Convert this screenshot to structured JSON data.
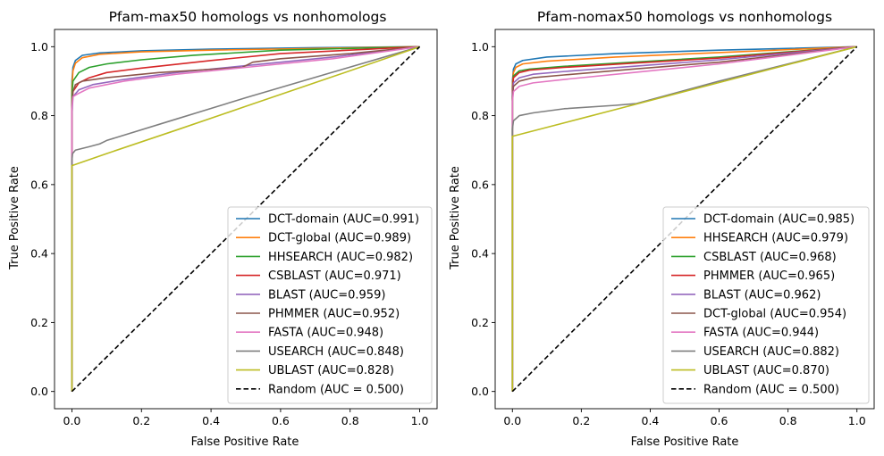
{
  "chart_data": [
    {
      "type": "line",
      "title": "Pfam-max50 homologs vs nonhomologs",
      "xlabel": "False Positive Rate",
      "ylabel": "True Positive Rate",
      "xlim": [
        -0.05,
        1.05
      ],
      "ylim": [
        -0.05,
        1.05
      ],
      "xticks": [
        "0.0",
        "0.2",
        "0.4",
        "0.6",
        "0.8",
        "1.0"
      ],
      "yticks": [
        "0.0",
        "0.2",
        "0.4",
        "0.6",
        "0.8",
        "1.0"
      ],
      "grid": false,
      "legend_position": "lower-right",
      "series": [
        {
          "name": "DCT-domain (AUC=0.991)",
          "color": "#1f77b4",
          "dash": "solid",
          "points": [
            [
              0,
              0
            ],
            [
              0,
              0.9
            ],
            [
              0.003,
              0.94
            ],
            [
              0.01,
              0.96
            ],
            [
              0.03,
              0.975
            ],
            [
              0.08,
              0.982
            ],
            [
              0.2,
              0.988
            ],
            [
              0.4,
              0.993
            ],
            [
              0.7,
              0.997
            ],
            [
              1,
              1
            ]
          ]
        },
        {
          "name": "DCT-global (AUC=0.989)",
          "color": "#ff7f0e",
          "dash": "solid",
          "points": [
            [
              0,
              0
            ],
            [
              0,
              0.88
            ],
            [
              0.003,
              0.93
            ],
            [
              0.01,
              0.952
            ],
            [
              0.03,
              0.968
            ],
            [
              0.08,
              0.978
            ],
            [
              0.2,
              0.985
            ],
            [
              0.4,
              0.99
            ],
            [
              0.7,
              0.995
            ],
            [
              1,
              1
            ]
          ]
        },
        {
          "name": "HHSEARCH (AUC=0.982)",
          "color": "#2ca02c",
          "dash": "solid",
          "points": [
            [
              0,
              0
            ],
            [
              0,
              0.86
            ],
            [
              0.003,
              0.9
            ],
            [
              0.02,
              0.925
            ],
            [
              0.05,
              0.94
            ],
            [
              0.1,
              0.95
            ],
            [
              0.2,
              0.962
            ],
            [
              0.35,
              0.975
            ],
            [
              0.6,
              0.99
            ],
            [
              1,
              1
            ]
          ]
        },
        {
          "name": "CSBLAST (AUC=0.971)",
          "color": "#d62728",
          "dash": "solid",
          "points": [
            [
              0,
              0
            ],
            [
              0,
              0.82
            ],
            [
              0.003,
              0.87
            ],
            [
              0.02,
              0.895
            ],
            [
              0.05,
              0.91
            ],
            [
              0.1,
              0.925
            ],
            [
              0.2,
              0.938
            ],
            [
              0.4,
              0.96
            ],
            [
              0.6,
              0.98
            ],
            [
              1,
              1
            ]
          ]
        },
        {
          "name": "BLAST (AUC=0.959)",
          "color": "#9467bd",
          "dash": "solid",
          "points": [
            [
              0,
              0
            ],
            [
              0,
              0.8
            ],
            [
              0.003,
              0.855
            ],
            [
              0.02,
              0.875
            ],
            [
              0.06,
              0.89
            ],
            [
              0.15,
              0.905
            ],
            [
              0.3,
              0.925
            ],
            [
              0.5,
              0.945
            ],
            [
              0.75,
              0.97
            ],
            [
              1,
              1
            ]
          ]
        },
        {
          "name": "PHMMER (AUC=0.952)",
          "color": "#8c564b",
          "dash": "solid",
          "points": [
            [
              0,
              0
            ],
            [
              0,
              0.84
            ],
            [
              0.003,
              0.87
            ],
            [
              0.01,
              0.89
            ],
            [
              0.03,
              0.9
            ],
            [
              0.1,
              0.91
            ],
            [
              0.25,
              0.925
            ],
            [
              0.49,
              0.94
            ],
            [
              0.52,
              0.955
            ],
            [
              0.6,
              0.965
            ],
            [
              0.8,
              0.98
            ],
            [
              1,
              1
            ]
          ]
        },
        {
          "name": "FASTA (AUC=0.948)",
          "color": "#e377c2",
          "dash": "solid",
          "points": [
            [
              0,
              0
            ],
            [
              0,
              0.82
            ],
            [
              0.003,
              0.855
            ],
            [
              0.02,
              0.865
            ],
            [
              0.05,
              0.88
            ],
            [
              0.15,
              0.9
            ],
            [
              0.3,
              0.92
            ],
            [
              0.5,
              0.94
            ],
            [
              0.75,
              0.965
            ],
            [
              1,
              1
            ]
          ]
        },
        {
          "name": "USEARCH (AUC=0.848)",
          "color": "#7f7f7f",
          "dash": "solid",
          "points": [
            [
              0,
              0
            ],
            [
              0,
              0.67
            ],
            [
              0.002,
              0.69
            ],
            [
              0.01,
              0.7
            ],
            [
              0.05,
              0.71
            ],
            [
              0.08,
              0.718
            ],
            [
              0.1,
              0.728
            ],
            [
              0.3,
              0.79
            ],
            [
              0.5,
              0.852
            ],
            [
              0.75,
              0.926
            ],
            [
              1,
              1
            ]
          ]
        },
        {
          "name": "UBLAST (AUC=0.828)",
          "color": "#bcbd22",
          "dash": "solid",
          "points": [
            [
              0,
              0
            ],
            [
              0,
              0.655
            ],
            [
              0.1,
              0.69
            ],
            [
              0.3,
              0.758
            ],
            [
              0.5,
              0.827
            ],
            [
              0.75,
              0.913
            ],
            [
              1,
              1
            ]
          ]
        },
        {
          "name": "Random (AUC = 0.500)",
          "color": "#000000",
          "dash": "dashed",
          "points": [
            [
              0,
              0
            ],
            [
              1,
              1
            ]
          ]
        }
      ]
    },
    {
      "type": "line",
      "title": "Pfam-nomax50 homologs vs nonhomologs",
      "xlabel": "False Positive Rate",
      "ylabel": "True Positive Rate",
      "xlim": [
        -0.05,
        1.05
      ],
      "ylim": [
        -0.05,
        1.05
      ],
      "xticks": [
        "0.0",
        "0.2",
        "0.4",
        "0.6",
        "0.8",
        "1.0"
      ],
      "yticks": [
        "0.0",
        "0.2",
        "0.4",
        "0.6",
        "0.8",
        "1.0"
      ],
      "grid": false,
      "legend_position": "lower-right",
      "series": [
        {
          "name": "DCT-domain (AUC=0.985)",
          "color": "#1f77b4",
          "dash": "solid",
          "points": [
            [
              0,
              0
            ],
            [
              0,
              0.9
            ],
            [
              0.003,
              0.935
            ],
            [
              0.01,
              0.95
            ],
            [
              0.03,
              0.96
            ],
            [
              0.1,
              0.97
            ],
            [
              0.3,
              0.98
            ],
            [
              0.6,
              0.99
            ],
            [
              1,
              1
            ]
          ]
        },
        {
          "name": "HHSEARCH (AUC=0.979)",
          "color": "#ff7f0e",
          "dash": "solid",
          "points": [
            [
              0,
              0
            ],
            [
              0,
              0.89
            ],
            [
              0.003,
              0.925
            ],
            [
              0.01,
              0.94
            ],
            [
              0.03,
              0.95
            ],
            [
              0.1,
              0.958
            ],
            [
              0.3,
              0.97
            ],
            [
              0.6,
              0.983
            ],
            [
              1,
              1
            ]
          ]
        },
        {
          "name": "CSBLAST (AUC=0.968)",
          "color": "#2ca02c",
          "dash": "solid",
          "points": [
            [
              0,
              0
            ],
            [
              0,
              0.88
            ],
            [
              0.003,
              0.915
            ],
            [
              0.02,
              0.93
            ],
            [
              0.05,
              0.935
            ],
            [
              0.15,
              0.943
            ],
            [
              0.35,
              0.955
            ],
            [
              0.6,
              0.97
            ],
            [
              1,
              1
            ]
          ]
        },
        {
          "name": "PHMMER (AUC=0.965)",
          "color": "#d62728",
          "dash": "solid",
          "points": [
            [
              0,
              0
            ],
            [
              0,
              0.87
            ],
            [
              0.003,
              0.91
            ],
            [
              0.02,
              0.925
            ],
            [
              0.05,
              0.932
            ],
            [
              0.15,
              0.94
            ],
            [
              0.35,
              0.952
            ],
            [
              0.6,
              0.967
            ],
            [
              1,
              1
            ]
          ]
        },
        {
          "name": "BLAST (AUC=0.962)",
          "color": "#9467bd",
          "dash": "solid",
          "points": [
            [
              0,
              0
            ],
            [
              0,
              0.86
            ],
            [
              0.003,
              0.895
            ],
            [
              0.02,
              0.91
            ],
            [
              0.06,
              0.92
            ],
            [
              0.15,
              0.928
            ],
            [
              0.35,
              0.943
            ],
            [
              0.6,
              0.962
            ],
            [
              1,
              1
            ]
          ]
        },
        {
          "name": "DCT-global (AUC=0.954)",
          "color": "#8c564b",
          "dash": "solid",
          "points": [
            [
              0,
              0
            ],
            [
              0,
              0.85
            ],
            [
              0.003,
              0.885
            ],
            [
              0.02,
              0.9
            ],
            [
              0.06,
              0.91
            ],
            [
              0.15,
              0.918
            ],
            [
              0.35,
              0.935
            ],
            [
              0.6,
              0.955
            ],
            [
              1,
              1
            ]
          ]
        },
        {
          "name": "FASTA (AUC=0.944)",
          "color": "#e377c2",
          "dash": "solid",
          "points": [
            [
              0,
              0
            ],
            [
              0,
              0.84
            ],
            [
              0.003,
              0.87
            ],
            [
              0.02,
              0.885
            ],
            [
              0.06,
              0.895
            ],
            [
              0.15,
              0.905
            ],
            [
              0.35,
              0.925
            ],
            [
              0.6,
              0.95
            ],
            [
              1,
              1
            ]
          ]
        },
        {
          "name": "USEARCH (AUC=0.882)",
          "color": "#7f7f7f",
          "dash": "solid",
          "points": [
            [
              0,
              0
            ],
            [
              0,
              0.76
            ],
            [
              0.003,
              0.785
            ],
            [
              0.02,
              0.8
            ],
            [
              0.06,
              0.808
            ],
            [
              0.15,
              0.82
            ],
            [
              0.3,
              0.83
            ],
            [
              0.36,
              0.835
            ],
            [
              0.6,
              0.9
            ],
            [
              0.8,
              0.95
            ],
            [
              1,
              1
            ]
          ]
        },
        {
          "name": "UBLAST (AUC=0.870)",
          "color": "#bcbd22",
          "dash": "solid",
          "points": [
            [
              0,
              0
            ],
            [
              0,
              0.74
            ],
            [
              0.2,
              0.792
            ],
            [
              0.4,
              0.844
            ],
            [
              0.6,
              0.896
            ],
            [
              0.8,
              0.948
            ],
            [
              1,
              1
            ]
          ]
        },
        {
          "name": "Random (AUC = 0.500)",
          "color": "#000000",
          "dash": "dashed",
          "points": [
            [
              0,
              0
            ],
            [
              1,
              1
            ]
          ]
        }
      ]
    }
  ]
}
